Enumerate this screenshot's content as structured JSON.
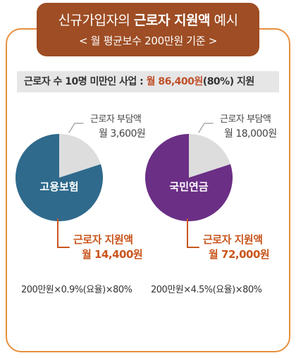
{
  "header": {
    "title_prefix": "신규가입자의 ",
    "title_strong": "근로자 지원액",
    "title_suffix": " 예시",
    "subtitle": "< 월 평균보수 200만원 기준 >"
  },
  "banner": {
    "prefix": "근로자 수 10명 미만인 사업 : ",
    "amount": "월 86,400원",
    "suffix": "(80%) 지원"
  },
  "colors": {
    "frame": "#e88e3d",
    "header_bg": "#9e4d24",
    "employment_insurance": "#2f6a8c",
    "national_pension": "#6b2f86",
    "worker_share": "#dddddd",
    "accent": "#c9561e"
  },
  "chart_data": [
    {
      "type": "pie",
      "center_label": "고용보험",
      "slices": [
        {
          "name": "근로자 지원액",
          "value": 14400,
          "amount_label": "월 14,400원",
          "percent": 80
        },
        {
          "name": "근로자 부담액",
          "value": 3600,
          "amount_label": "월 3,600원",
          "percent": 20
        }
      ],
      "formula": "200만원×0.9%(요율)×80%"
    },
    {
      "type": "pie",
      "center_label": "국민연금",
      "slices": [
        {
          "name": "근로자 지원액",
          "value": 72000,
          "amount_label": "월 72,000원",
          "percent": 80
        },
        {
          "name": "근로자 부담액",
          "value": 18000,
          "amount_label": "월 18,000원",
          "percent": 20
        }
      ],
      "formula": "200만원×4.5%(요율)×80%"
    }
  ]
}
